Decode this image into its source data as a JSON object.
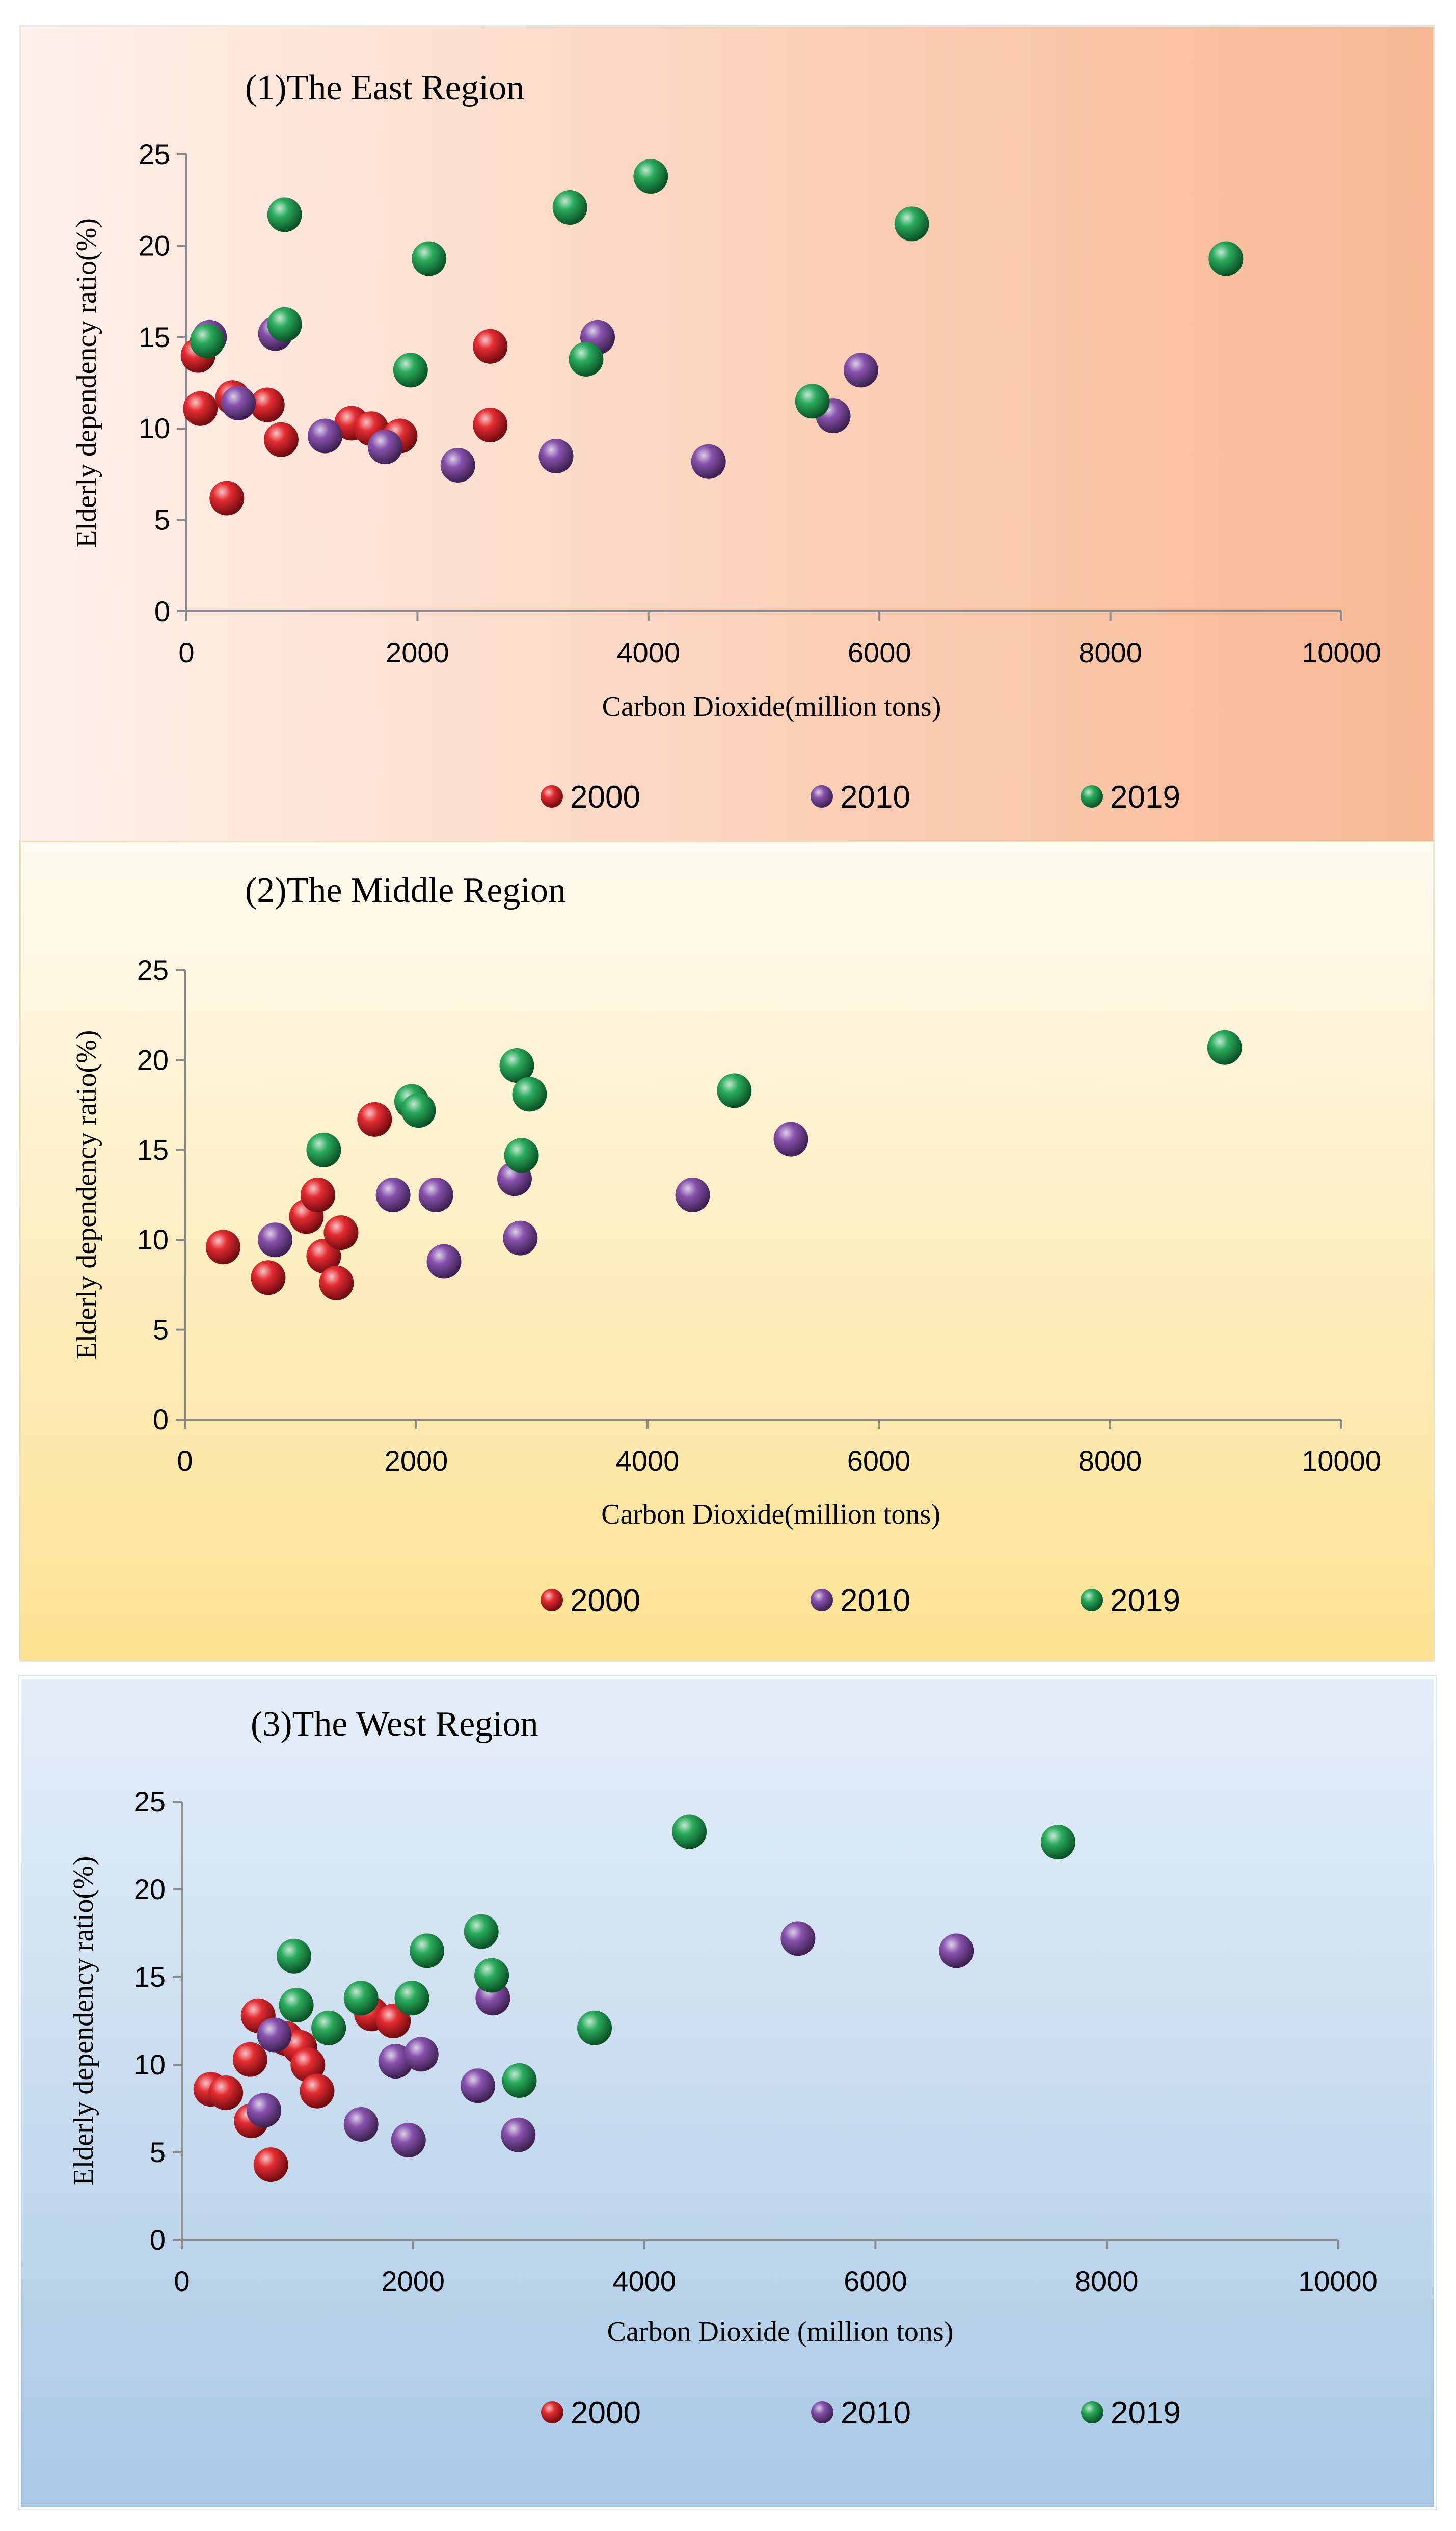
{
  "chart_data": [
    {
      "type": "scatter",
      "title": "(1)The East Region",
      "xlabel": "Carbon Dioxide(million  tons)",
      "ylabel": "Elderly  dependency ratio(%)",
      "xlim": [
        0,
        10000
      ],
      "ylim": [
        0,
        25
      ],
      "xticks": [
        "0",
        "2000",
        "4000",
        "6000",
        "8000",
        "10000"
      ],
      "yticks": [
        "0",
        "5",
        "10",
        "15",
        "20",
        "25"
      ],
      "legend_position": "bottom",
      "series": [
        {
          "name": "2000",
          "color": "#e0141b",
          "points": [
            [
              100,
              14
            ],
            [
              120,
              11.1
            ],
            [
              350,
              6.2
            ],
            [
              400,
              11.7
            ],
            [
              700,
              11.3
            ],
            [
              820,
              9.4
            ],
            [
              1430,
              10.3
            ],
            [
              1600,
              10.0
            ],
            [
              1850,
              9.6
            ],
            [
              2630,
              10.2
            ],
            [
              2630,
              14.5
            ]
          ]
        },
        {
          "name": "2010",
          "color": "#7a3fa3",
          "points": [
            [
              200,
              15
            ],
            [
              450,
              11.4
            ],
            [
              770,
              15.2
            ],
            [
              1200,
              9.6
            ],
            [
              1720,
              9.0
            ],
            [
              2350,
              8.0
            ],
            [
              3200,
              8.5
            ],
            [
              3560,
              15.0
            ],
            [
              4520,
              8.2
            ],
            [
              5600,
              10.7
            ],
            [
              5840,
              13.2
            ]
          ]
        },
        {
          "name": "2019",
          "color": "#12a24a",
          "points": [
            [
              180,
              14.8
            ],
            [
              850,
              21.7
            ],
            [
              850,
              15.7
            ],
            [
              1940,
              13.2
            ],
            [
              2100,
              19.3
            ],
            [
              3320,
              22.1
            ],
            [
              3460,
              13.8
            ],
            [
              4020,
              23.8
            ],
            [
              5420,
              11.5
            ],
            [
              6280,
              21.2
            ],
            [
              9000,
              19.3
            ]
          ]
        }
      ]
    },
    {
      "type": "scatter",
      "title": "(2)The Middle Region",
      "xlabel": "Carbon Dioxide(million  tons)",
      "ylabel": "Elderly  dependency ratio(%)",
      "xlim": [
        0,
        10000
      ],
      "ylim": [
        0,
        25
      ],
      "xticks": [
        "0",
        "2000",
        "4000",
        "6000",
        "8000",
        "10000"
      ],
      "yticks": [
        "0",
        "5",
        "10",
        "15",
        "20",
        "25"
      ],
      "legend_position": "bottom",
      "series": [
        {
          "name": "2000",
          "color": "#e0141b",
          "points": [
            [
              330,
              9.6
            ],
            [
              720,
              7.9
            ],
            [
              1050,
              11.3
            ],
            [
              1150,
              12.5
            ],
            [
              1200,
              9.1
            ],
            [
              1310,
              7.6
            ],
            [
              1350,
              10.4
            ],
            [
              1640,
              16.7
            ]
          ]
        },
        {
          "name": "2010",
          "color": "#7a3fa3",
          "points": [
            [
              780,
              10
            ],
            [
              1800,
              12.5
            ],
            [
              2170,
              12.5
            ],
            [
              2240,
              8.8
            ],
            [
              2850,
              13.4
            ],
            [
              2900,
              10.1
            ],
            [
              4390,
              12.5
            ],
            [
              5240,
              15.6
            ]
          ]
        },
        {
          "name": "2019",
          "color": "#12a24a",
          "points": [
            [
              1200,
              15
            ],
            [
              1960,
              17.7
            ],
            [
              2020,
              17.2
            ],
            [
              2870,
              19.7
            ],
            [
              2910,
              14.7
            ],
            [
              2980,
              18.1
            ],
            [
              4750,
              18.3
            ],
            [
              8990,
              20.7
            ]
          ]
        }
      ]
    },
    {
      "type": "scatter",
      "title": "(3)The West Region",
      "xlabel": "Carbon Dioxide   (million tons)",
      "ylabel": "Elderly  dependency ratio(%)",
      "xlim": [
        0,
        10000
      ],
      "ylim": [
        0,
        25
      ],
      "xticks": [
        "0",
        "2000",
        "4000",
        "6000",
        "8000",
        "10000"
      ],
      "yticks": [
        "0",
        "5",
        "10",
        "15",
        "20",
        "25"
      ],
      "legend_position": "bottom",
      "series": [
        {
          "name": "2000",
          "color": "#e0141b",
          "points": [
            [
              250,
              8.6
            ],
            [
              380,
              8.4
            ],
            [
              590,
              10.3
            ],
            [
              600,
              6.8
            ],
            [
              660,
              12.8
            ],
            [
              770,
              4.3
            ],
            [
              900,
              11.5
            ],
            [
              1020,
              11.0
            ],
            [
              1090,
              10.0
            ],
            [
              1170,
              8.5
            ],
            [
              1640,
              12.9
            ],
            [
              1830,
              12.5
            ]
          ]
        },
        {
          "name": "2010",
          "color": "#7a3fa3",
          "points": [
            [
              710,
              7.4
            ],
            [
              800,
              11.7
            ],
            [
              1550,
              6.6
            ],
            [
              1850,
              10.2
            ],
            [
              1960,
              5.7
            ],
            [
              2070,
              10.6
            ],
            [
              2560,
              8.8
            ],
            [
              2690,
              13.8
            ],
            [
              2910,
              6.0
            ],
            [
              5330,
              17.2
            ],
            [
              6700,
              16.5
            ]
          ]
        },
        {
          "name": "2019",
          "color": "#12a24a",
          "points": [
            [
              970,
              16.2
            ],
            [
              990,
              13.4
            ],
            [
              1270,
              12.1
            ],
            [
              1550,
              13.8
            ],
            [
              1990,
              13.8
            ],
            [
              2120,
              16.5
            ],
            [
              2590,
              17.6
            ],
            [
              2680,
              15.1
            ],
            [
              2920,
              9.1
            ],
            [
              3570,
              12.1
            ],
            [
              4390,
              23.3
            ],
            [
              7580,
              22.7
            ]
          ]
        }
      ]
    }
  ]
}
